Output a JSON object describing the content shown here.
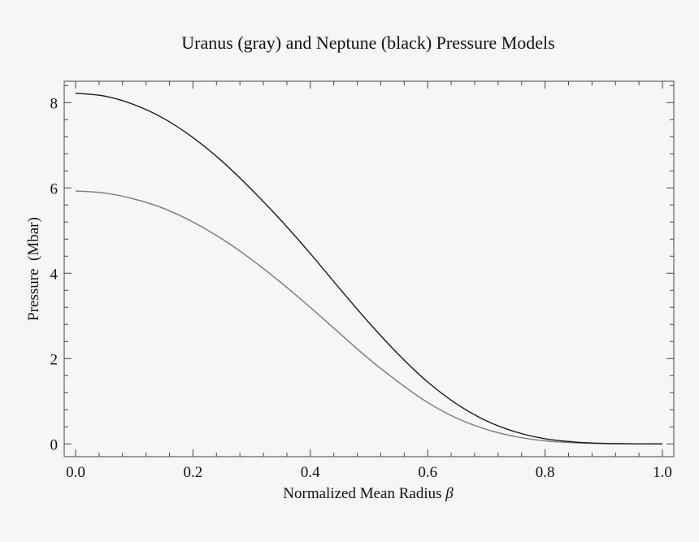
{
  "chart_data": {
    "type": "line",
    "title": "Uranus (gray) and Neptune (black) Pressure Models",
    "xlabel": "Normalized Mean Radius",
    "xlabel_symbol": "β",
    "ylabel": "Pressure  (Mbar)",
    "xlim": [
      0.0,
      1.0
    ],
    "ylim": [
      -0.3,
      8.5
    ],
    "grid": false,
    "x_ticks": [
      0.0,
      0.2,
      0.4,
      0.6,
      0.8,
      1.0
    ],
    "x_tick_labels": [
      "0.0",
      "0.2",
      "0.4",
      "0.6",
      "0.8",
      "1.0"
    ],
    "y_ticks": [
      0,
      2,
      4,
      6,
      8
    ],
    "y_tick_labels": [
      "0",
      "2",
      "4",
      "6",
      "8"
    ],
    "x": [
      0.0,
      0.05,
      0.1,
      0.15,
      0.2,
      0.25,
      0.3,
      0.35,
      0.4,
      0.45,
      0.5,
      0.55,
      0.6,
      0.65,
      0.7,
      0.75,
      0.8,
      0.85,
      0.9,
      0.95,
      1.0
    ],
    "series": [
      {
        "name": "Uranus",
        "color": "#7a7a7a",
        "values": [
          5.93,
          5.88,
          5.74,
          5.52,
          5.2,
          4.8,
          4.32,
          3.78,
          3.2,
          2.59,
          1.99,
          1.45,
          0.97,
          0.6,
          0.34,
          0.17,
          0.07,
          0.025,
          0.008,
          0.002,
          0.0
        ]
      },
      {
        "name": "Neptune",
        "color": "#1a1a1a",
        "values": [
          8.22,
          8.15,
          7.95,
          7.63,
          7.18,
          6.62,
          5.96,
          5.24,
          4.46,
          3.64,
          2.84,
          2.1,
          1.45,
          0.93,
          0.54,
          0.28,
          0.12,
          0.045,
          0.012,
          0.002,
          0.0
        ]
      }
    ]
  }
}
